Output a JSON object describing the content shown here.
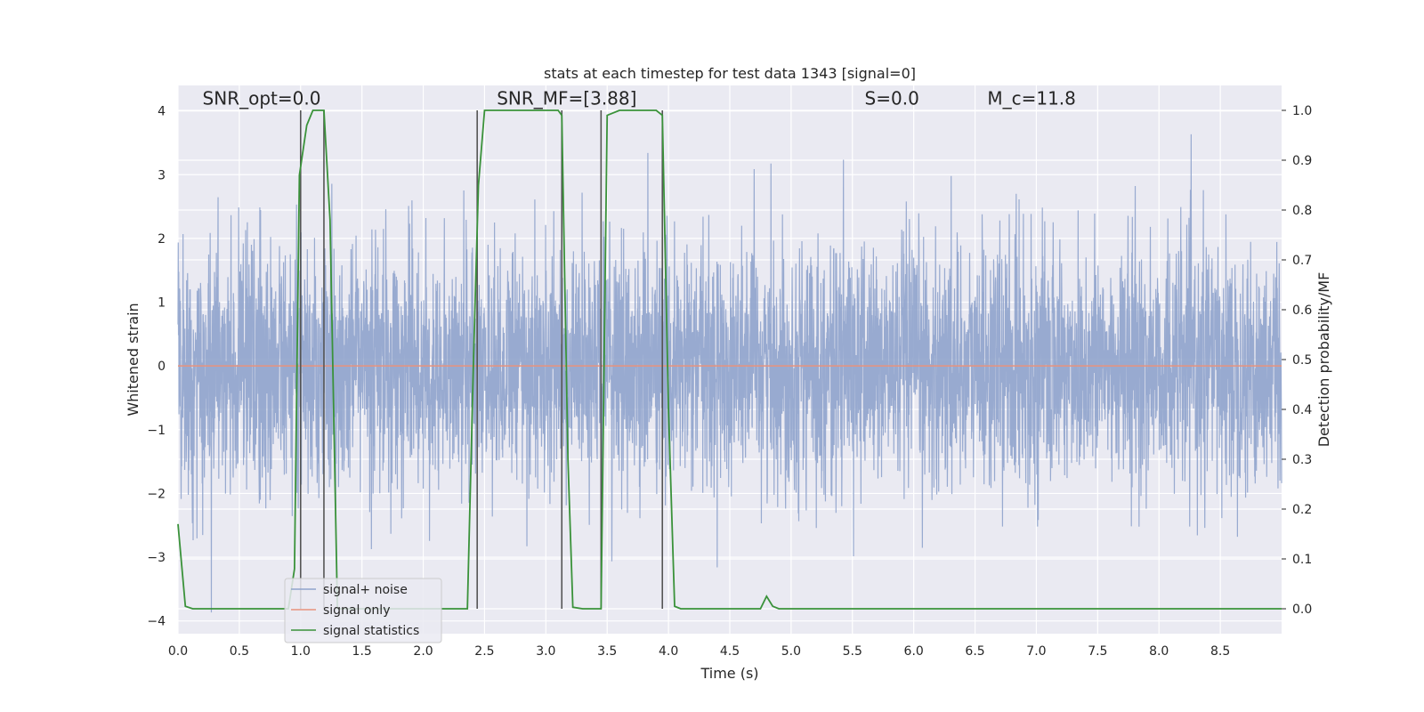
{
  "chart_data": {
    "type": "line",
    "title": "stats at each timestep for test data 1343 [signal=0]",
    "xlabel": "Time (s)",
    "ylabel": "Whitened strain",
    "ylabel_right": "Detection probability/MF",
    "xlim": [
      0.0,
      9.0
    ],
    "ylim": [
      -4.2,
      4.4
    ],
    "ylim_right": [
      -0.05,
      1.05
    ],
    "x_ticks": [
      "0.0",
      "0.5",
      "1.0",
      "1.5",
      "2.0",
      "2.5",
      "3.0",
      "3.5",
      "4.0",
      "4.5",
      "5.0",
      "5.5",
      "6.0",
      "6.5",
      "7.0",
      "7.5",
      "8.0",
      "8.5"
    ],
    "x_tick_values": [
      0.0,
      0.5,
      1.0,
      1.5,
      2.0,
      2.5,
      3.0,
      3.5,
      4.0,
      4.5,
      5.0,
      5.5,
      6.0,
      6.5,
      7.0,
      7.5,
      8.0,
      8.5
    ],
    "y_ticks": [
      "−4",
      "−3",
      "−2",
      "−1",
      "0",
      "1",
      "2",
      "3",
      "4"
    ],
    "y_tick_values": [
      -4,
      -3,
      -2,
      -1,
      0,
      1,
      2,
      3,
      4
    ],
    "y_ticks_right": [
      "0.0",
      "0.1",
      "0.2",
      "0.3",
      "0.4",
      "0.5",
      "0.6",
      "0.7",
      "0.8",
      "0.9",
      "1.0"
    ],
    "y_tick_values_right": [
      0.0,
      0.1,
      0.2,
      0.3,
      0.4,
      0.5,
      0.6,
      0.7,
      0.8,
      0.9,
      1.0
    ],
    "grid": true,
    "annotations": [
      {
        "text": "SNR_opt=0.0",
        "x": 0.2,
        "y": 4.1
      },
      {
        "text": "SNR_MF=[3.88]",
        "x": 2.6,
        "y": 4.1
      },
      {
        "text": "S=0.0",
        "x": 5.6,
        "y": 4.1
      },
      {
        "text": "M_c=11.8",
        "x": 6.6,
        "y": 4.1
      }
    ],
    "vertical_lines": [
      1.0,
      1.19,
      2.44,
      3.13,
      3.45,
      3.95
    ],
    "series": [
      {
        "name": "signal+ noise",
        "color": "#8fa3cc",
        "axis": "left",
        "x_start": 0.0,
        "x_end": 9.0,
        "envelope": "noise amplitude roughly ±1.5 with spikes to ±3.5"
      },
      {
        "name": "signal only",
        "color": "#e8927c",
        "axis": "left",
        "x": [
          0.0,
          9.0
        ],
        "y": [
          0.0,
          0.0
        ]
      },
      {
        "name": "signal statistics",
        "color": "#3a923a",
        "axis": "right",
        "x": [
          0.0,
          0.06,
          0.12,
          0.5,
          0.9,
          0.95,
          0.99,
          1.05,
          1.1,
          1.15,
          1.19,
          1.24,
          1.3,
          1.35,
          2.0,
          2.36,
          2.41,
          2.45,
          2.5,
          2.6,
          3.0,
          3.1,
          3.13,
          3.18,
          3.22,
          3.3,
          3.45,
          3.5,
          3.6,
          3.9,
          3.95,
          4.0,
          4.05,
          4.1,
          4.5,
          4.75,
          4.8,
          4.85,
          4.9,
          5.0,
          9.0
        ],
        "y": [
          0.17,
          0.005,
          0.0,
          0.0,
          0.0,
          0.08,
          0.87,
          0.97,
          1.0,
          1.0,
          1.0,
          0.78,
          0.0,
          0.0,
          0.0,
          0.0,
          0.5,
          0.85,
          1.0,
          1.0,
          1.0,
          1.0,
          0.99,
          0.3,
          0.003,
          0.0,
          0.0,
          0.99,
          1.0,
          1.0,
          0.99,
          0.4,
          0.005,
          0.0,
          0.0,
          0.0,
          0.025,
          0.005,
          0.0,
          0.0,
          0.0
        ]
      }
    ],
    "legend": {
      "placement": "lower-left",
      "entries": [
        {
          "label": "signal+ noise",
          "color": "#8fa3cc"
        },
        {
          "label": "signal only",
          "color": "#e8927c"
        },
        {
          "label": "signal statistics",
          "color": "#3a923a"
        }
      ]
    },
    "colors": {
      "plot_bg": "#eaeaf2",
      "grid": "#ffffff",
      "vline": "#555555"
    }
  }
}
